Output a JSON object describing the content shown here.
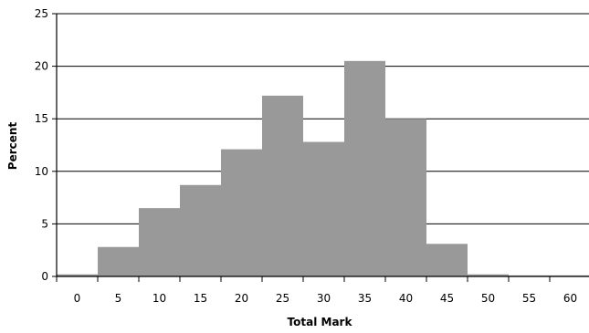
{
  "chart_data": {
    "type": "bar",
    "title": "",
    "xlabel": "Total Mark",
    "ylabel": "Percent",
    "categories": [
      "0",
      "5",
      "10",
      "15",
      "20",
      "25",
      "30",
      "35",
      "40",
      "45",
      "50",
      "55",
      "60"
    ],
    "values": [
      0.2,
      2.8,
      6.5,
      8.7,
      12.1,
      17.2,
      12.8,
      20.5,
      15.0,
      3.1,
      0.2,
      0.1,
      0.1
    ],
    "ylim": [
      0,
      25
    ],
    "yticks": [
      "0",
      "5",
      "10",
      "15",
      "20",
      "25"
    ],
    "grid": true,
    "legend": "none",
    "bar_color": "#999999"
  }
}
